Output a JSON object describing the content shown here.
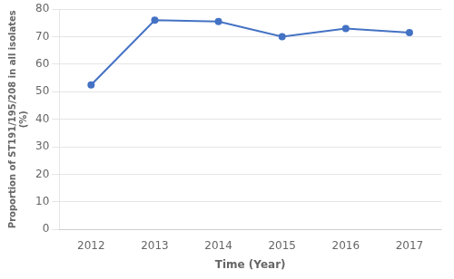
{
  "chart_data": {
    "type": "line",
    "x": [
      2012,
      2013,
      2014,
      2015,
      2016,
      2017
    ],
    "values": [
      52.5,
      76.0,
      75.5,
      70.0,
      73.0,
      71.5
    ],
    "color": "#4472c4",
    "marker": "circle",
    "xlabel": "Time (Year)",
    "ylabel": "Proportion of ST191/195/208 in all isolates\n(%)",
    "xlim": [
      2011.5,
      2017.5
    ],
    "xticks": [
      2012,
      2013,
      2014,
      2015,
      2016,
      2017
    ],
    "ylim": [
      0,
      80
    ],
    "yticks": [
      0,
      10,
      20,
      30,
      40,
      50,
      60,
      70,
      80
    ],
    "grid": "y"
  }
}
